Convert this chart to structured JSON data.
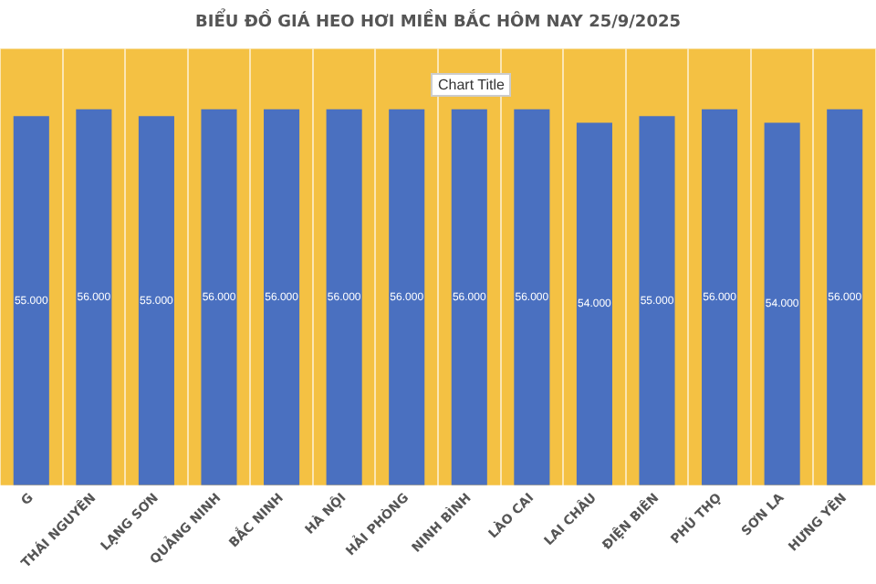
{
  "chart_data": {
    "type": "bar",
    "title": "BIỂU ĐỒ GIÁ HEO HƠI MIỀN BẮC HÔM NAY 25/9/2025",
    "categories": [
      "G",
      "THÁI NGUYÊN",
      "LẠNG SƠN",
      "QUẢNG NINH",
      "BẮC NINH",
      "HÀ NỘI",
      "HẢI PHÒNG",
      "NINH BÌNH",
      "LÀO CAI",
      "LAI CHÂU",
      "ĐIỆN BIÊN",
      "PHÚ THỌ",
      "SƠN LA",
      "HƯNG YÊN"
    ],
    "values": [
      55000,
      56000,
      55000,
      56000,
      56000,
      56000,
      56000,
      56000,
      56000,
      54000,
      55000,
      56000,
      54000,
      56000
    ],
    "value_labels": [
      "55.000",
      "56.000",
      "55.000",
      "56.000",
      "56.000",
      "56.000",
      "56.000",
      "56.000",
      "56.000",
      "54.000",
      "55.000",
      "56.000",
      "54.000",
      "56.000"
    ],
    "color": "#4a70c0",
    "ylim": [
      0,
      65000
    ],
    "bands": [
      {
        "axis": "y",
        "from": 0,
        "to": 65000,
        "color": "#f4c143"
      }
    ],
    "tick_labels": "x",
    "grid": "x",
    "legend": false,
    "annotations": [
      "Chart Title"
    ]
  }
}
